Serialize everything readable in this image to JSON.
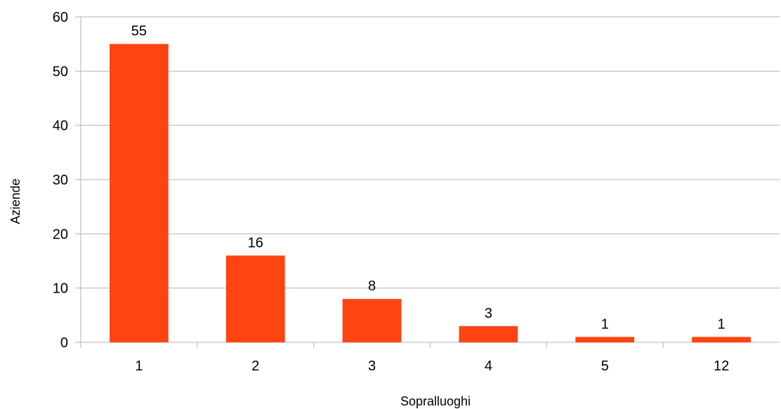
{
  "chart_data": {
    "type": "bar",
    "categories": [
      "1",
      "2",
      "3",
      "4",
      "5",
      "12"
    ],
    "values": [
      55,
      16,
      8,
      3,
      1,
      1
    ],
    "xlabel": "Sopralluoghi",
    "ylabel": "Aziende",
    "ylim": [
      0,
      60
    ],
    "yticks": [
      "0",
      "10",
      "20",
      "30",
      "40",
      "50",
      "60"
    ],
    "grid": true,
    "legend": "none",
    "bar_color": "#ff4411",
    "data_labels": true
  }
}
